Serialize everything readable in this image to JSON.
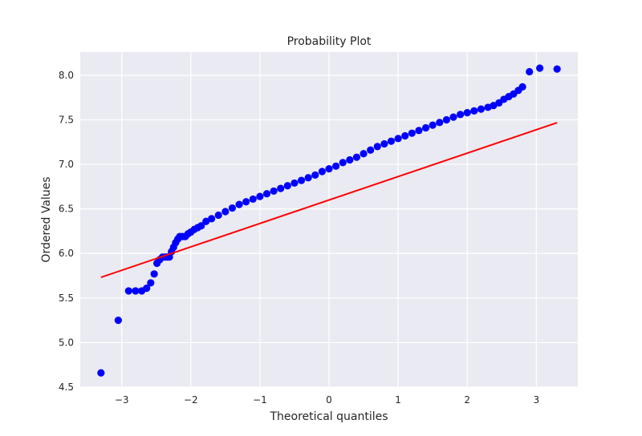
{
  "chart_data": {
    "type": "scatter",
    "title": "Probability Plot",
    "xlabel": "Theoretical quantiles",
    "ylabel": "Ordered Values",
    "xlim": [
      -3.6,
      3.6
    ],
    "ylim": [
      4.5,
      8.26
    ],
    "xticks": [
      -3,
      -2,
      -1,
      0,
      1,
      2,
      3
    ],
    "xtick_labels": [
      "−3",
      "−2",
      "−1",
      "0",
      "1",
      "2",
      "3"
    ],
    "yticks": [
      4.5,
      5.0,
      5.5,
      6.0,
      6.5,
      7.0,
      7.5,
      8.0
    ],
    "ytick_labels": [
      "4.5",
      "5.0",
      "5.5",
      "6.0",
      "6.5",
      "7.0",
      "7.5",
      "8.0"
    ],
    "grid": true,
    "background": "#eaeaf2",
    "marker_color": "#0000ff",
    "line_color": "#ff0000",
    "fit_line": {
      "slope": 0.263,
      "intercept": 6.6,
      "x_range": [
        -3.3,
        3.3
      ]
    },
    "points": [
      [
        -3.3,
        4.66
      ],
      [
        -3.05,
        5.25
      ],
      [
        -2.9,
        5.58
      ],
      [
        -2.8,
        5.58
      ],
      [
        -2.71,
        5.58
      ],
      [
        -2.64,
        5.61
      ],
      [
        -2.58,
        5.67
      ],
      [
        -2.53,
        5.77
      ],
      [
        -2.49,
        5.89
      ],
      [
        -2.45,
        5.93
      ],
      [
        -2.41,
        5.96
      ],
      [
        -2.37,
        5.96
      ],
      [
        -2.34,
        5.96
      ],
      [
        -2.31,
        5.96
      ],
      [
        -2.28,
        6.02
      ],
      [
        -2.25,
        6.07
      ],
      [
        -2.22,
        6.12
      ],
      [
        -2.19,
        6.16
      ],
      [
        -2.16,
        6.19
      ],
      [
        -2.12,
        6.19
      ],
      [
        -2.08,
        6.19
      ],
      [
        -2.04,
        6.22
      ],
      [
        -2.0,
        6.24
      ],
      [
        -1.95,
        6.27
      ],
      [
        -1.9,
        6.29
      ],
      [
        -1.85,
        6.31
      ],
      [
        -1.78,
        6.36
      ],
      [
        -1.7,
        6.39
      ],
      [
        -1.6,
        6.43
      ],
      [
        -1.5,
        6.47
      ],
      [
        -1.4,
        6.51
      ],
      [
        -1.3,
        6.55
      ],
      [
        -1.2,
        6.58
      ],
      [
        -1.1,
        6.61
      ],
      [
        -1.0,
        6.64
      ],
      [
        -0.9,
        6.67
      ],
      [
        -0.8,
        6.7
      ],
      [
        -0.7,
        6.73
      ],
      [
        -0.6,
        6.76
      ],
      [
        -0.5,
        6.79
      ],
      [
        -0.4,
        6.82
      ],
      [
        -0.3,
        6.85
      ],
      [
        -0.2,
        6.88
      ],
      [
        -0.1,
        6.92
      ],
      [
        0.0,
        6.95
      ],
      [
        0.1,
        6.98
      ],
      [
        0.2,
        7.02
      ],
      [
        0.3,
        7.05
      ],
      [
        0.4,
        7.08
      ],
      [
        0.5,
        7.12
      ],
      [
        0.6,
        7.16
      ],
      [
        0.7,
        7.2
      ],
      [
        0.8,
        7.23
      ],
      [
        0.9,
        7.26
      ],
      [
        1.0,
        7.29
      ],
      [
        1.1,
        7.32
      ],
      [
        1.2,
        7.35
      ],
      [
        1.3,
        7.38
      ],
      [
        1.4,
        7.41
      ],
      [
        1.5,
        7.44
      ],
      [
        1.6,
        7.47
      ],
      [
        1.7,
        7.5
      ],
      [
        1.8,
        7.53
      ],
      [
        1.9,
        7.56
      ],
      [
        2.0,
        7.58
      ],
      [
        2.1,
        7.6
      ],
      [
        2.2,
        7.62
      ],
      [
        2.3,
        7.64
      ],
      [
        2.38,
        7.66
      ],
      [
        2.46,
        7.69
      ],
      [
        2.53,
        7.73
      ],
      [
        2.6,
        7.76
      ],
      [
        2.67,
        7.79
      ],
      [
        2.74,
        7.83
      ],
      [
        2.8,
        7.87
      ],
      [
        2.9,
        8.04
      ],
      [
        3.05,
        8.08
      ],
      [
        3.3,
        8.07
      ]
    ]
  }
}
